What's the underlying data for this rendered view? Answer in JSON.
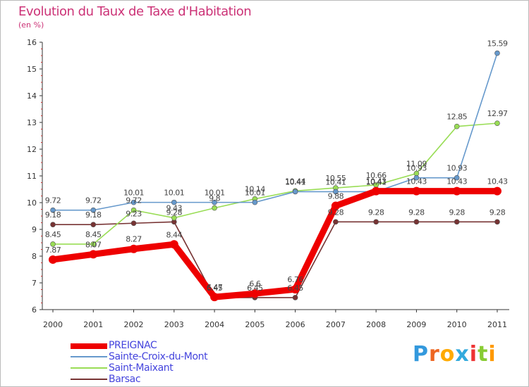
{
  "header": {
    "title": "Evolution du Taux de Taxe d'Habitation",
    "subtitle": "(en %)"
  },
  "chart_data": {
    "type": "line",
    "title": "Evolution du Taux de Taxe d'Habitation",
    "ylabel": "(en %)",
    "xlabel": "",
    "ylim": [
      6,
      16
    ],
    "yticks": [
      "6",
      "7",
      "8",
      "9",
      "10",
      "11",
      "12",
      "13",
      "14",
      "15",
      "16"
    ],
    "categories": [
      "2000",
      "2001",
      "2002",
      "2003",
      "2004",
      "2005",
      "2006",
      "2007",
      "2008",
      "2009",
      "2010",
      "2011"
    ],
    "series": [
      {
        "name": "PREIGNAC",
        "color": "#ee0000",
        "values": [
          7.87,
          8.07,
          8.27,
          8.44,
          6.47,
          6.6,
          6.76,
          9.88,
          10.43,
          10.43,
          10.43,
          10.43
        ],
        "labels": [
          "7.87",
          "8.07",
          "8.27",
          "8.44",
          "6.47",
          "6.6",
          "6.76",
          "9.88",
          "10.43",
          "10.43",
          "10.43",
          "10.43"
        ]
      },
      {
        "name": "Sainte-Croix-du-Mont",
        "color": "#6699cc",
        "values": [
          9.72,
          9.72,
          10.01,
          10.01,
          10.01,
          10.01,
          10.41,
          10.41,
          10.41,
          10.93,
          10.93,
          15.59
        ],
        "labels": [
          "9.72",
          "9.72",
          "10.01",
          "10.01",
          "10.01",
          "10.01",
          "10.41",
          "10.41",
          "10.41",
          "10.93",
          "10.93",
          "15.59"
        ]
      },
      {
        "name": "Saint-Maixant",
        "color": "#99dd55",
        "values": [
          8.45,
          8.45,
          9.72,
          9.43,
          9.8,
          10.14,
          10.44,
          10.55,
          10.66,
          11.09,
          12.85,
          12.97
        ],
        "labels": [
          "8.45",
          "8.45",
          "9.72",
          "9.43",
          "9.8",
          "10.14",
          "10.44",
          "10.55",
          "10.66",
          "11.09",
          "12.85",
          "12.97"
        ]
      },
      {
        "name": "Barsac",
        "color": "#773333",
        "values": [
          9.18,
          9.18,
          9.23,
          9.28,
          6.45,
          6.45,
          6.45,
          9.28,
          9.28,
          9.28,
          9.28,
          9.28
        ],
        "labels": [
          "9.18",
          "9.18",
          "9.23",
          "9.28",
          "6.45",
          "6.45",
          "6.45",
          "9.28",
          "9.28",
          "9.28",
          "9.28",
          "9.28"
        ]
      }
    ],
    "legend_position": "bottom-left",
    "grid": false
  },
  "legend": {
    "items": [
      {
        "label": "PREIGNAC",
        "color": "#ee0000"
      },
      {
        "label": "Sainte-Croix-du-Mont",
        "color": "#6699cc"
      },
      {
        "label": "Saint-Maixant",
        "color": "#99dd55"
      },
      {
        "label": "Barsac",
        "color": "#773333"
      }
    ]
  },
  "logo": {
    "letters": [
      "P",
      "r",
      "o",
      "x",
      "i",
      "t",
      "i"
    ],
    "colors": [
      "#3399dd",
      "#ee6622",
      "#ffaa00",
      "#33aadd",
      "#ee3333",
      "#88cc33",
      "#ff9900"
    ]
  }
}
